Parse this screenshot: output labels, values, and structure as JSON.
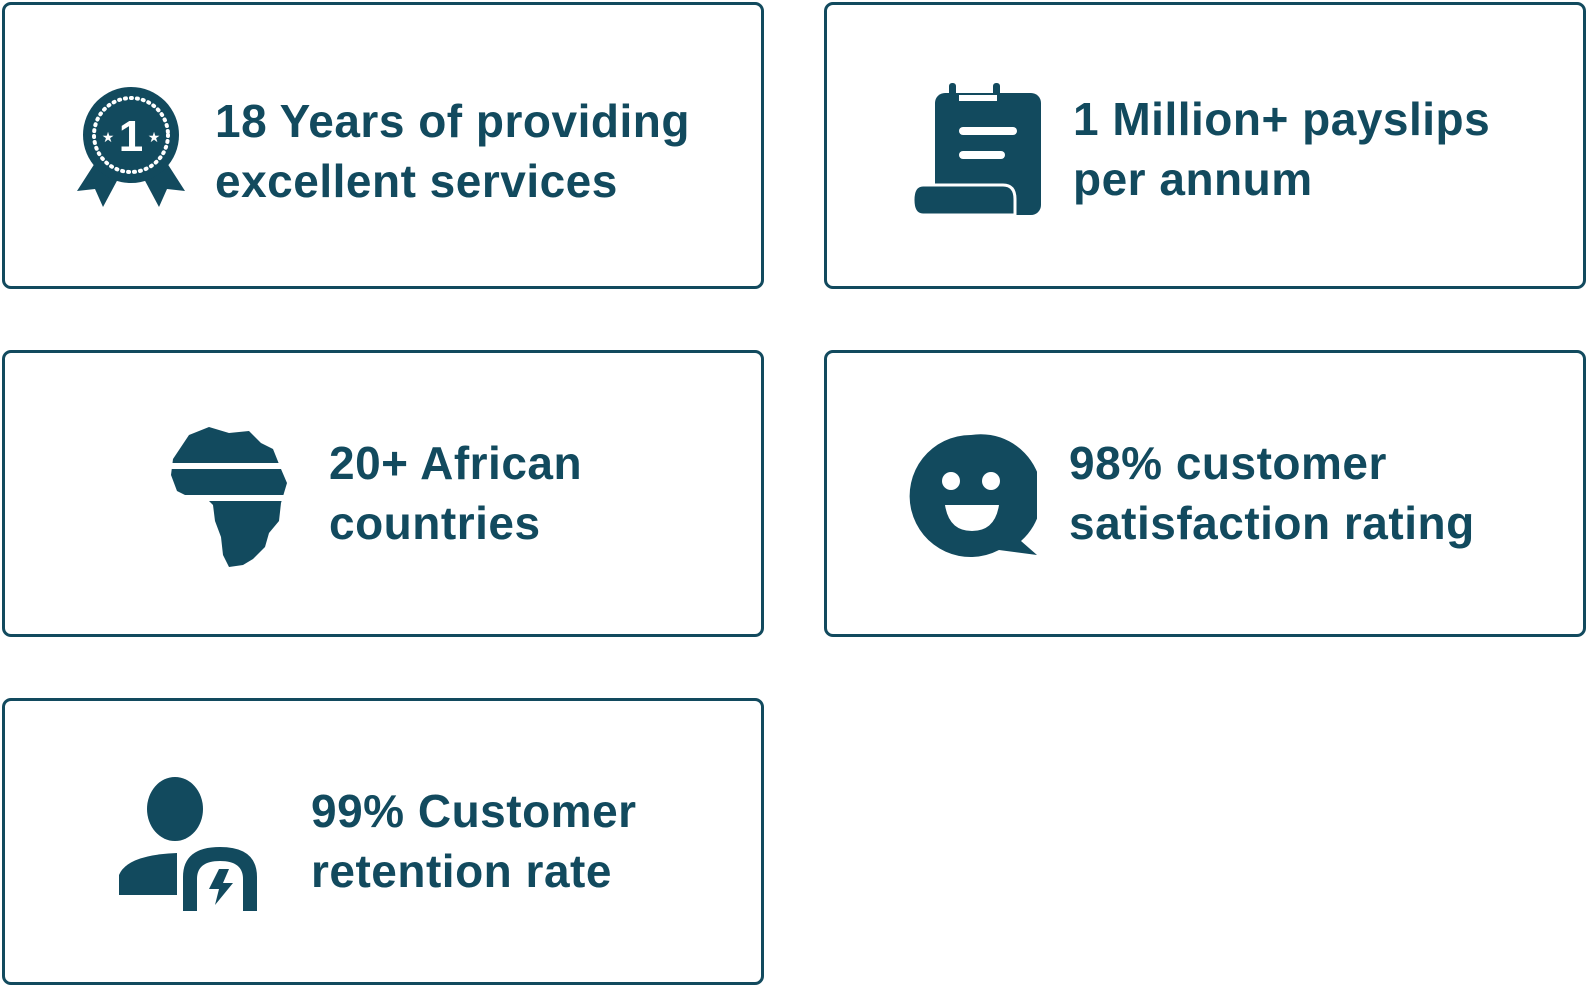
{
  "accent_color": "#124a5e",
  "stats": [
    {
      "icon": "award-medal-icon",
      "line1": "18 Years of providing",
      "line2": "excellent services"
    },
    {
      "icon": "payslip-scroll-icon",
      "line1": "1 Million+ payslips",
      "line2": "per annum"
    },
    {
      "icon": "africa-map-icon",
      "line1": "20+ African",
      "line2": "countries"
    },
    {
      "icon": "smiley-chat-icon",
      "line1": "98% customer",
      "line2": "satisfaction rating"
    },
    {
      "icon": "customer-retention-icon",
      "line1": "99% Customer",
      "line2": "retention rate"
    }
  ]
}
